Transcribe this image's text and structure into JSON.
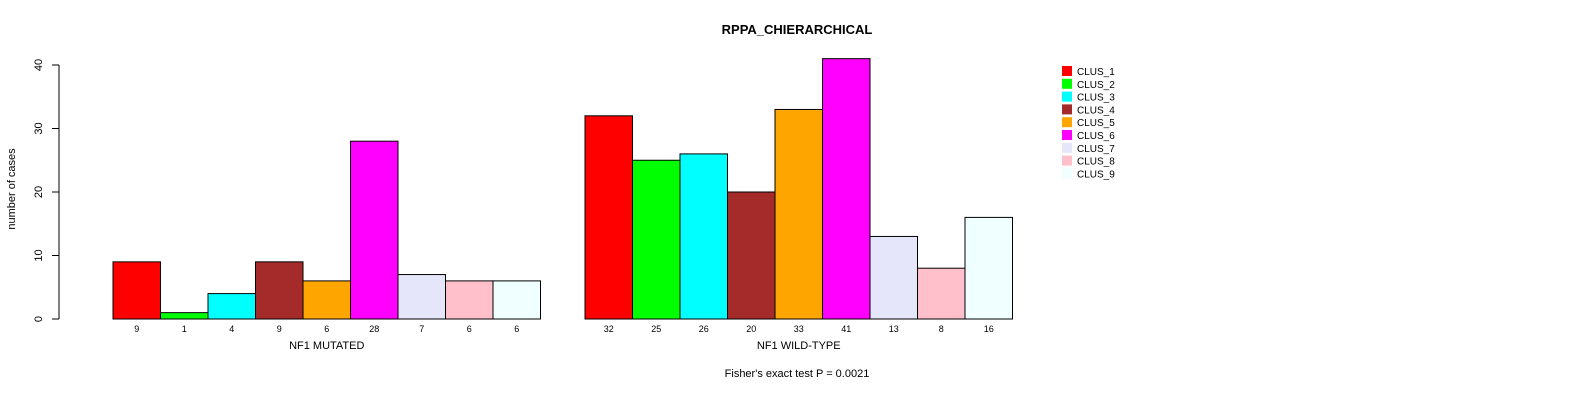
{
  "chart_data": {
    "type": "bar",
    "title": "RPPA_CHIERARCHICAL",
    "ylabel": "number of cases",
    "ylim": [
      0,
      40
    ],
    "yticks": [
      0,
      10,
      20,
      30,
      40
    ],
    "footer": "Fisher's exact test P = 0.0021",
    "categories": [
      "CLUS_1",
      "CLUS_2",
      "CLUS_3",
      "CLUS_4",
      "CLUS_5",
      "CLUS_6",
      "CLUS_7",
      "CLUS_8",
      "CLUS_9"
    ],
    "colors": [
      "#ff0000",
      "#00ff00",
      "#00ffff",
      "#a52a2a",
      "#ffa500",
      "#ff00ff",
      "#e6e6fa",
      "#ffc0cb",
      "#f0ffff"
    ],
    "legend_position": "right",
    "groups": [
      {
        "name": "NF1 MUTATED",
        "values": [
          9,
          1,
          4,
          9,
          6,
          28,
          7,
          6,
          6
        ]
      },
      {
        "name": "NF1 WILD-TYPE",
        "values": [
          32,
          25,
          26,
          20,
          33,
          41,
          13,
          8,
          16
        ]
      }
    ]
  }
}
